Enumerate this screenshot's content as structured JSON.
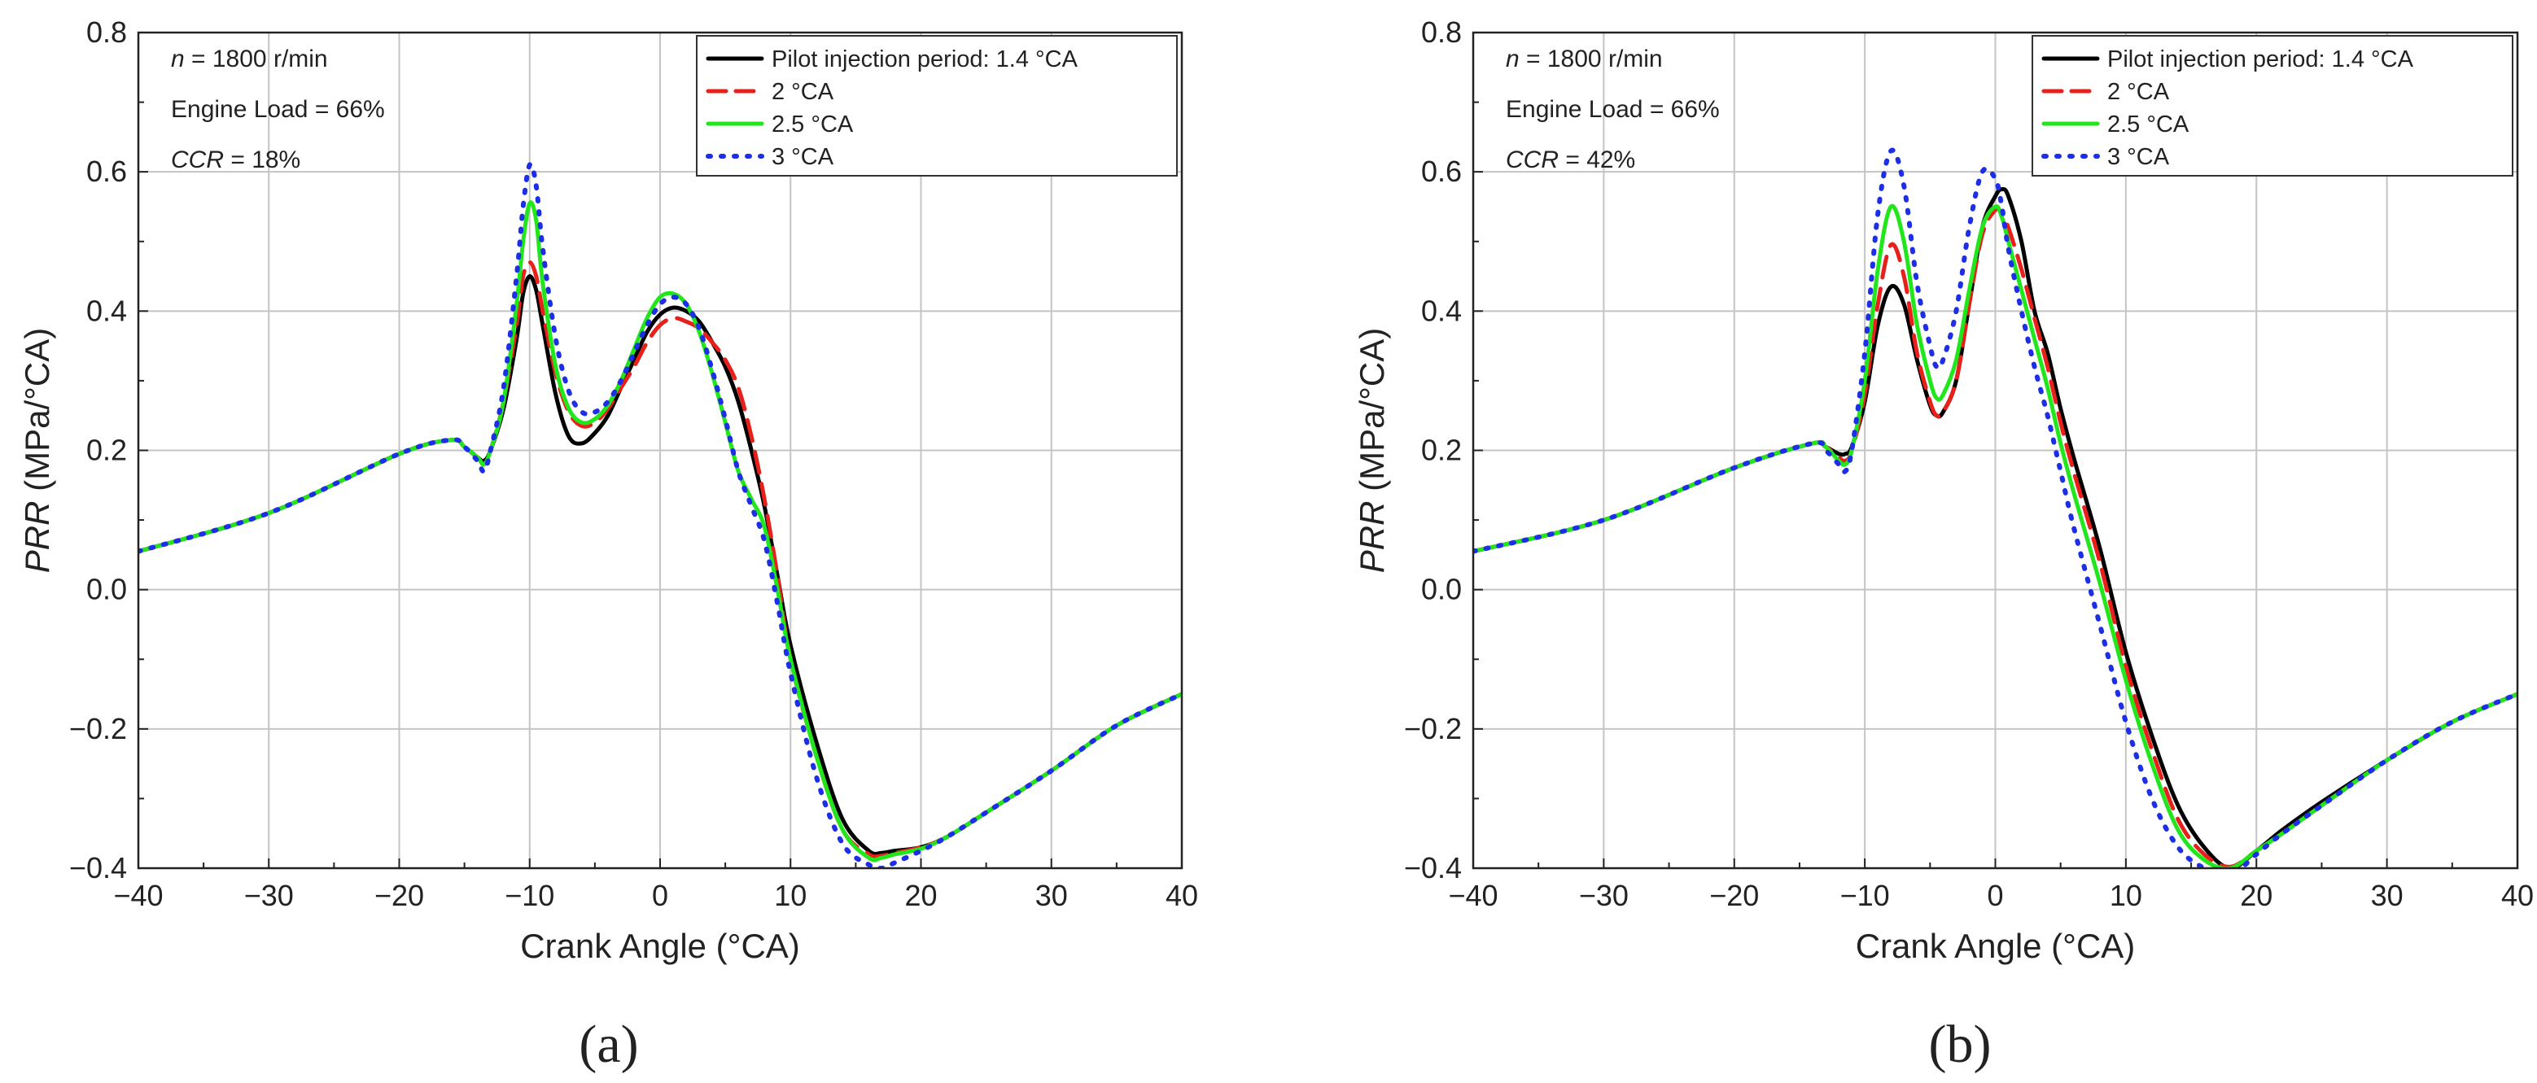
{
  "figure": {
    "panel_labels": [
      "(a)",
      "(b)"
    ]
  },
  "chart_data": [
    {
      "type": "line",
      "panel_label": "(a)",
      "xlabel": "Crank Angle (°CA)",
      "ylabel": "PRR (MPa/°CA)",
      "xlim": [
        -40,
        40
      ],
      "ylim": [
        -0.4,
        0.8
      ],
      "xticks": [
        -40,
        -30,
        -20,
        -10,
        0,
        10,
        20,
        30,
        40
      ],
      "xtick_labels": [
        "−40",
        "−30",
        "−20",
        "−10",
        "0",
        "10",
        "20",
        "30",
        "40"
      ],
      "yticks": [
        -0.4,
        -0.2,
        0.0,
        0.2,
        0.4,
        0.6,
        0.8
      ],
      "ytick_labels": [
        "−0.4",
        "−0.2",
        "0.0",
        "0.2",
        "0.4",
        "0.6",
        "0.8"
      ],
      "grid": true,
      "annotations": [
        {
          "italic": "n",
          "rest": " = 1800 r/min"
        },
        {
          "italic": "",
          "rest": "Engine Load = 66%"
        },
        {
          "italic": "CCR",
          "rest": " = 18%"
        }
      ],
      "legend_position": "top-right",
      "series": [
        {
          "name": "Pilot injection period: 1.4 °CA",
          "color": "#000000",
          "dash": "solid",
          "x": [
            -40,
            -30,
            -20,
            -16,
            -15,
            -14,
            -13.5,
            -13,
            -12,
            -11,
            -10.5,
            -10,
            -9.5,
            -9,
            -8,
            -7,
            -6,
            -5,
            -4,
            -3,
            -2,
            -1,
            0,
            1,
            2,
            3,
            4,
            5,
            6,
            7,
            8,
            9,
            10,
            12,
            14,
            16,
            17,
            18,
            20,
            22,
            25,
            30,
            35,
            40
          ],
          "y": [
            0.055,
            0.11,
            0.195,
            0.215,
            0.205,
            0.19,
            0.185,
            0.2,
            0.26,
            0.36,
            0.425,
            0.45,
            0.43,
            0.38,
            0.28,
            0.22,
            0.21,
            0.225,
            0.25,
            0.29,
            0.33,
            0.37,
            0.395,
            0.405,
            0.4,
            0.385,
            0.355,
            0.32,
            0.27,
            0.2,
            0.12,
            0.02,
            -0.08,
            -0.22,
            -0.33,
            -0.375,
            -0.378,
            -0.375,
            -0.37,
            -0.355,
            -0.32,
            -0.26,
            -0.195,
            -0.15
          ]
        },
        {
          "name": "2 °CA",
          "color": "#e8201c",
          "dash": "long-dash",
          "x": [
            -40,
            -30,
            -20,
            -16,
            -15,
            -14,
            -13.5,
            -13,
            -12,
            -11,
            -10.5,
            -10,
            -9.5,
            -9,
            -8,
            -7,
            -6,
            -5,
            -4,
            -3,
            -2,
            -1,
            0,
            1,
            2,
            3,
            4,
            5,
            6,
            7,
            8,
            9,
            10,
            12,
            14,
            16,
            17,
            18,
            20,
            22,
            25,
            30,
            35,
            40
          ],
          "y": [
            0.055,
            0.11,
            0.195,
            0.215,
            0.205,
            0.19,
            0.18,
            0.2,
            0.27,
            0.38,
            0.45,
            0.47,
            0.45,
            0.4,
            0.31,
            0.255,
            0.235,
            0.24,
            0.26,
            0.29,
            0.32,
            0.355,
            0.38,
            0.39,
            0.385,
            0.375,
            0.355,
            0.33,
            0.29,
            0.22,
            0.13,
            0.02,
            -0.1,
            -0.24,
            -0.345,
            -0.38,
            -0.382,
            -0.378,
            -0.37,
            -0.355,
            -0.32,
            -0.26,
            -0.195,
            -0.15
          ]
        },
        {
          "name": "2.5 °CA",
          "color": "#22e61c",
          "dash": "solid",
          "x": [
            -40,
            -30,
            -20,
            -16,
            -15,
            -14,
            -13.5,
            -13,
            -12,
            -11,
            -10.5,
            -10,
            -9.5,
            -9,
            -8,
            -7,
            -6,
            -5,
            -4,
            -3,
            -2,
            -1,
            0,
            1,
            2,
            3,
            4,
            5,
            6,
            7,
            8,
            9,
            10,
            12,
            14,
            16,
            17,
            18,
            20,
            22,
            25,
            30,
            35,
            40
          ],
          "y": [
            0.055,
            0.11,
            0.195,
            0.215,
            0.205,
            0.19,
            0.18,
            0.2,
            0.27,
            0.41,
            0.5,
            0.555,
            0.53,
            0.44,
            0.32,
            0.26,
            0.24,
            0.245,
            0.265,
            0.3,
            0.345,
            0.39,
            0.42,
            0.425,
            0.41,
            0.37,
            0.31,
            0.24,
            0.17,
            0.13,
            0.09,
            0.0,
            -0.1,
            -0.24,
            -0.345,
            -0.385,
            -0.385,
            -0.38,
            -0.372,
            -0.355,
            -0.32,
            -0.26,
            -0.195,
            -0.15
          ]
        },
        {
          "name": "3 °CA",
          "color": "#1c2ee6",
          "dash": "dotted",
          "x": [
            -40,
            -30,
            -20,
            -16,
            -15,
            -14,
            -13.5,
            -13,
            -12,
            -11,
            -10.5,
            -10,
            -9.5,
            -9,
            -8,
            -7,
            -6,
            -5,
            -4,
            -3,
            -2,
            -1,
            0,
            1,
            2,
            3,
            4,
            5,
            6,
            7,
            8,
            9,
            10,
            12,
            14,
            16,
            17,
            18,
            20,
            22,
            25,
            30,
            35,
            40
          ],
          "y": [
            0.055,
            0.11,
            0.195,
            0.215,
            0.205,
            0.185,
            0.17,
            0.2,
            0.29,
            0.45,
            0.55,
            0.61,
            0.58,
            0.49,
            0.36,
            0.285,
            0.255,
            0.255,
            0.27,
            0.3,
            0.34,
            0.38,
            0.41,
            0.42,
            0.41,
            0.375,
            0.315,
            0.245,
            0.17,
            0.12,
            0.07,
            -0.02,
            -0.12,
            -0.27,
            -0.365,
            -0.395,
            -0.4,
            -0.392,
            -0.375,
            -0.355,
            -0.32,
            -0.26,
            -0.195,
            -0.15
          ]
        }
      ]
    },
    {
      "type": "line",
      "panel_label": "(b)",
      "xlabel": "Crank Angle (°CA)",
      "ylabel": "PRR (MPa/°CA)",
      "xlim": [
        -40,
        40
      ],
      "ylim": [
        -0.4,
        0.8
      ],
      "xticks": [
        -40,
        -30,
        -20,
        -10,
        0,
        10,
        20,
        30,
        40
      ],
      "xtick_labels": [
        "−40",
        "−30",
        "−20",
        "−10",
        "0",
        "10",
        "20",
        "30",
        "40"
      ],
      "yticks": [
        -0.4,
        -0.2,
        0.0,
        0.2,
        0.4,
        0.6,
        0.8
      ],
      "ytick_labels": [
        "−0.4",
        "−0.2",
        "0.0",
        "0.2",
        "0.4",
        "0.6",
        "0.8"
      ],
      "grid": true,
      "annotations": [
        {
          "italic": "n",
          "rest": " = 1800 r/min"
        },
        {
          "italic": "",
          "rest": "Engine Load = 66%"
        },
        {
          "italic": "CCR",
          "rest": " = 42%"
        }
      ],
      "legend_position": "top-right",
      "series": [
        {
          "name": "Pilot injection period: 1.4 °CA",
          "color": "#000000",
          "dash": "solid",
          "x": [
            -40,
            -30,
            -20,
            -14,
            -13,
            -12,
            -11.5,
            -11,
            -10,
            -9,
            -8,
            -7,
            -6,
            -5,
            -4.5,
            -4,
            -3,
            -2,
            -1,
            0,
            0.5,
            1,
            2,
            3,
            4,
            5,
            6,
            8,
            10,
            12,
            14,
            16,
            18,
            20,
            22,
            25,
            30,
            35,
            40
          ],
          "y": [
            0.055,
            0.1,
            0.175,
            0.21,
            0.205,
            0.195,
            0.195,
            0.205,
            0.27,
            0.38,
            0.435,
            0.41,
            0.33,
            0.265,
            0.25,
            0.255,
            0.3,
            0.41,
            0.52,
            0.565,
            0.575,
            0.565,
            0.5,
            0.4,
            0.34,
            0.26,
            0.19,
            0.06,
            -0.09,
            -0.21,
            -0.31,
            -0.37,
            -0.4,
            -0.375,
            -0.345,
            -0.305,
            -0.245,
            -0.19,
            -0.15
          ]
        },
        {
          "name": "2 °CA",
          "color": "#e8201c",
          "dash": "long-dash",
          "x": [
            -40,
            -30,
            -20,
            -14,
            -13,
            -12,
            -11.5,
            -11,
            -10,
            -9,
            -8,
            -7,
            -6,
            -5,
            -4.5,
            -4,
            -3,
            -2,
            -1,
            0,
            0.5,
            1,
            2,
            3,
            4,
            5,
            6,
            8,
            10,
            12,
            14,
            16,
            18,
            20,
            22,
            25,
            30,
            35,
            40
          ],
          "y": [
            0.055,
            0.1,
            0.175,
            0.21,
            0.205,
            0.19,
            0.185,
            0.2,
            0.28,
            0.41,
            0.495,
            0.45,
            0.34,
            0.27,
            0.25,
            0.255,
            0.3,
            0.41,
            0.51,
            0.545,
            0.54,
            0.52,
            0.46,
            0.39,
            0.32,
            0.24,
            0.17,
            0.04,
            -0.11,
            -0.23,
            -0.33,
            -0.38,
            -0.398,
            -0.375,
            -0.35,
            -0.31,
            -0.245,
            -0.19,
            -0.15
          ]
        },
        {
          "name": "2.5 °CA",
          "color": "#22e61c",
          "dash": "solid",
          "x": [
            -40,
            -30,
            -20,
            -14,
            -13,
            -12,
            -11.5,
            -11,
            -10,
            -9,
            -8,
            -7,
            -6,
            -5,
            -4.5,
            -4,
            -3,
            -2,
            -1,
            0,
            0.5,
            1,
            2,
            3,
            4,
            5,
            6,
            8,
            10,
            12,
            14,
            16,
            18,
            20,
            22,
            25,
            30,
            35,
            40
          ],
          "y": [
            0.055,
            0.1,
            0.175,
            0.21,
            0.205,
            0.185,
            0.18,
            0.2,
            0.3,
            0.46,
            0.55,
            0.5,
            0.38,
            0.3,
            0.275,
            0.28,
            0.33,
            0.43,
            0.52,
            0.55,
            0.535,
            0.5,
            0.43,
            0.36,
            0.29,
            0.21,
            0.14,
            0.01,
            -0.13,
            -0.25,
            -0.345,
            -0.388,
            -0.4,
            -0.375,
            -0.35,
            -0.31,
            -0.245,
            -0.19,
            -0.15
          ]
        },
        {
          "name": "3 °CA",
          "color": "#1c2ee6",
          "dash": "dotted",
          "x": [
            -40,
            -30,
            -20,
            -14,
            -13,
            -12,
            -11.5,
            -11,
            -10,
            -9,
            -8,
            -7,
            -6,
            -5,
            -4.5,
            -4,
            -3,
            -2,
            -1,
            0,
            0.5,
            1,
            2,
            3,
            4,
            5,
            6,
            8,
            10,
            12,
            14,
            16,
            18,
            20,
            22,
            25,
            30,
            35,
            40
          ],
          "y": [
            0.055,
            0.1,
            0.175,
            0.21,
            0.2,
            0.18,
            0.17,
            0.2,
            0.34,
            0.54,
            0.63,
            0.58,
            0.44,
            0.35,
            0.32,
            0.33,
            0.4,
            0.52,
            0.6,
            0.59,
            0.55,
            0.49,
            0.4,
            0.32,
            0.25,
            0.17,
            0.09,
            -0.05,
            -0.19,
            -0.3,
            -0.37,
            -0.4,
            -0.41,
            -0.38,
            -0.35,
            -0.31,
            -0.245,
            -0.19,
            -0.15
          ]
        }
      ]
    }
  ]
}
